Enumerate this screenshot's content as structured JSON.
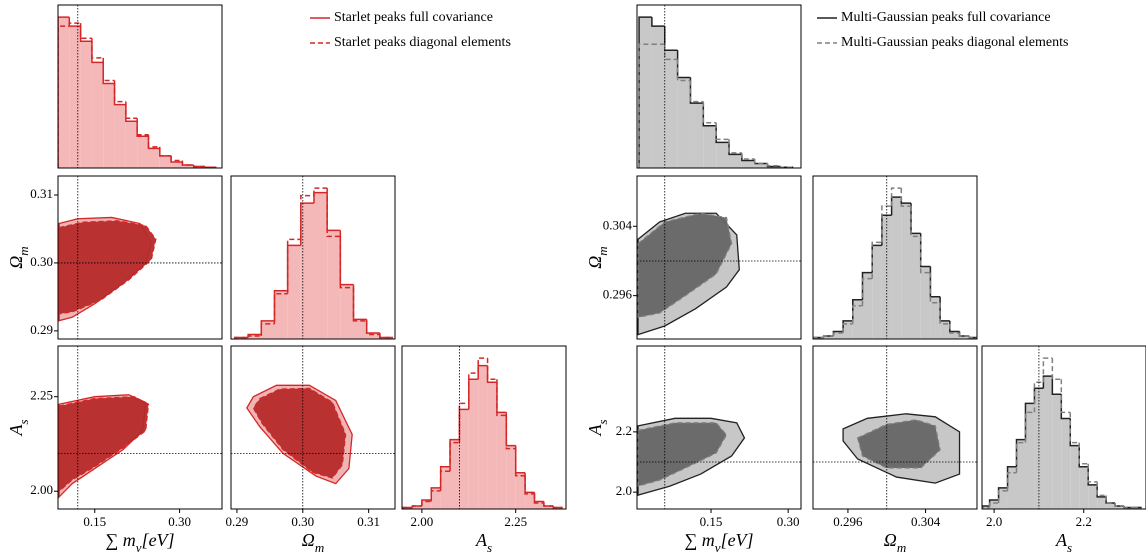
{
  "chart_data": [
    {
      "type": "corner",
      "series": [
        {
          "name": "Starlet peaks full covariance",
          "color": "#d62728",
          "dash": false,
          "fill": "#eeb0b0"
        },
        {
          "name": "Starlet peaks diagonal elements",
          "color": "#d62728",
          "dash": true,
          "fill": "#b52a2a"
        }
      ],
      "hist_fill": "#f5b8b8",
      "hist_ylim": [
        0,
        1.08
      ],
      "parameters": [
        {
          "label": [
            {
              "text": "∑ m"
            },
            {
              "text": "ν",
              "sub": true
            },
            {
              "text": "[eV]"
            }
          ],
          "truth": 0.12,
          "xlim": [
            0.085,
            0.375
          ],
          "xticks": [
            0.15,
            {
              "value": 0.3,
              "label": "0.30"
            }
          ]
        },
        {
          "label": [
            {
              "text": "Ω"
            },
            {
              "text": "m",
              "sub": true
            }
          ],
          "truth": 0.3,
          "xlim": [
            0.2891,
            0.314
          ],
          "xticks": [
            0.29,
            {
              "value": 0.3,
              "label": "0.30"
            },
            0.31
          ],
          "ylim": [
            0.2888,
            0.3128
          ],
          "yticks": [
            0.29,
            {
              "value": 0.3,
              "label": "0.30"
            },
            0.31
          ]
        },
        {
          "label": [
            {
              "text": "A"
            },
            {
              "text": "s",
              "sub": true
            }
          ],
          "truth": 2.1,
          "xlim": [
            1.947,
            2.384
          ],
          "xticks": [
            {
              "value": 2.0,
              "label": "2.00"
            },
            2.25
          ],
          "ylim": [
            1.953,
            2.384
          ],
          "yticks": [
            {
              "value": 2.0,
              "label": "2.00"
            },
            2.25
          ]
        }
      ],
      "histograms": [
        {
          "param": 0,
          "bins": [
            0.085,
            0.105,
            0.125,
            0.145,
            0.165,
            0.185,
            0.205,
            0.225,
            0.245,
            0.265,
            0.285,
            0.305,
            0.325,
            0.345,
            0.365
          ],
          "series": [
            {
              "values": [
                1.0,
                0.94,
                0.84,
                0.7,
                0.56,
                0.42,
                0.31,
                0.21,
                0.13,
                0.08,
                0.04,
                0.02,
                0.01,
                0.005
              ]
            },
            {
              "values": [
                0.94,
                0.96,
                0.86,
                0.73,
                0.58,
                0.44,
                0.33,
                0.22,
                0.14,
                0.08,
                0.05,
                0.02,
                0.01,
                0.005
              ]
            }
          ]
        },
        {
          "param": 1,
          "bins": [
            0.2897,
            0.2917,
            0.2937,
            0.2957,
            0.2977,
            0.2997,
            0.3017,
            0.3037,
            0.3057,
            0.3077,
            0.3097,
            0.3117,
            0.3137
          ],
          "series": [
            {
              "values": [
                0.01,
                0.03,
                0.12,
                0.32,
                0.62,
                0.9,
                0.97,
                0.72,
                0.36,
                0.13,
                0.04,
                0.01
              ]
            },
            {
              "values": [
                0.01,
                0.02,
                0.1,
                0.3,
                0.66,
                0.95,
                1.0,
                0.68,
                0.34,
                0.12,
                0.03,
                0.01
              ]
            }
          ]
        },
        {
          "param": 2,
          "bins": [
            1.95,
            1.975,
            2.0,
            2.025,
            2.05,
            2.075,
            2.1,
            2.125,
            2.15,
            2.175,
            2.2,
            2.225,
            2.25,
            2.275,
            2.3,
            2.325,
            2.35,
            2.375
          ],
          "series": [
            {
              "values": [
                0.01,
                0.02,
                0.06,
                0.14,
                0.28,
                0.46,
                0.66,
                0.86,
                0.95,
                0.84,
                0.64,
                0.42,
                0.24,
                0.11,
                0.05,
                0.02,
                0.01
              ]
            },
            {
              "values": [
                0.01,
                0.02,
                0.05,
                0.12,
                0.25,
                0.44,
                0.7,
                0.9,
                1.0,
                0.86,
                0.62,
                0.4,
                0.22,
                0.1,
                0.04,
                0.02,
                0.01
              ]
            }
          ]
        }
      ],
      "contours": [
        {
          "x_param": 0,
          "y_param": 1,
          "series": [
            {
              "x": [
                0.087,
                0.12,
                0.18,
                0.23,
                0.25,
                0.24,
                0.2,
                0.15,
                0.11,
                0.087
              ],
              "y": [
                0.3058,
                0.3065,
                0.3067,
                0.3058,
                0.303,
                0.3,
                0.297,
                0.294,
                0.292,
                0.2915
              ]
            },
            {
              "x": [
                0.087,
                0.13,
                0.19,
                0.24,
                0.258,
                0.25,
                0.21,
                0.16,
                0.11,
                0.087
              ],
              "y": [
                0.3052,
                0.306,
                0.3062,
                0.3055,
                0.3035,
                0.3005,
                0.2975,
                0.2945,
                0.2928,
                0.2925
              ]
            }
          ]
        },
        {
          "x_param": 0,
          "y_param": 2,
          "series": [
            {
              "x": [
                0.087,
                0.15,
                0.21,
                0.24,
                0.235,
                0.2,
                0.15,
                0.11,
                0.087
              ],
              "y": [
                2.23,
                2.25,
                2.255,
                2.235,
                2.16,
                2.11,
                2.06,
                2.02,
                1.985
              ]
            },
            {
              "x": [
                0.087,
                0.15,
                0.22,
                0.245,
                0.24,
                0.2,
                0.15,
                0.11,
                0.087
              ],
              "y": [
                2.225,
                2.245,
                2.25,
                2.23,
                2.16,
                2.115,
                2.065,
                2.03,
                2.0
              ]
            }
          ]
        },
        {
          "x_param": 1,
          "y_param": 2,
          "series": [
            {
              "x": [
                0.2925,
                0.296,
                0.301,
                0.305,
                0.3075,
                0.307,
                0.305,
                0.302,
                0.297,
                0.2935,
                0.2915
              ],
              "y": [
                2.25,
                2.28,
                2.28,
                2.24,
                2.15,
                2.06,
                2.02,
                2.04,
                2.1,
                2.17,
                2.22
              ]
            },
            {
              "x": [
                0.2935,
                0.2965,
                0.301,
                0.3045,
                0.3065,
                0.306,
                0.3045,
                0.3015,
                0.297,
                0.2938,
                0.2925
              ],
              "y": [
                2.245,
                2.27,
                2.272,
                2.235,
                2.15,
                2.07,
                2.035,
                2.05,
                2.11,
                2.18,
                2.22
              ]
            }
          ]
        }
      ]
    },
    {
      "type": "corner",
      "series": [
        {
          "name": "Multi-Gaussian peaks full covariance",
          "color": "#222222",
          "dash": false,
          "fill": "#c4c4c4"
        },
        {
          "name": "Multi-Gaussian peaks diagonal elements",
          "color": "#808080",
          "dash": true,
          "fill": "#666666"
        }
      ],
      "hist_fill": "#c8c8c8",
      "hist_ylim": [
        0,
        1.08
      ],
      "parameters": [
        {
          "label": [
            {
              "text": "∑ m"
            },
            {
              "text": "ν",
              "sub": true
            },
            {
              "text": "[eV]"
            }
          ],
          "truth": 0.06,
          "xlim": [
            0.006,
            0.325
          ],
          "xticks": [
            0.15,
            {
              "value": 0.3,
              "label": "0.30"
            }
          ]
        },
        {
          "label": [
            {
              "text": "Ω"
            },
            {
              "text": "m",
              "sub": true
            }
          ],
          "truth": 0.3,
          "xlim": [
            0.2924,
            0.3093
          ],
          "xticks": [
            0.296,
            0.304
          ],
          "ylim": [
            0.291,
            0.3098
          ],
          "yticks": [
            0.296,
            0.304
          ]
        },
        {
          "label": [
            {
              "text": "A"
            },
            {
              "text": "s",
              "sub": true
            }
          ],
          "truth": 2.1,
          "xlim": [
            1.973,
            2.339
          ],
          "xticks": [
            {
              "value": 2.0,
              "label": "2.0"
            },
            2.2
          ],
          "ylim": [
            1.944,
            2.485
          ],
          "yticks": [
            {
              "value": 2.0,
              "label": "2.0"
            },
            2.2
          ]
        }
      ],
      "histograms": [
        {
          "param": 0,
          "bins": [
            0.01,
            0.035,
            0.06,
            0.085,
            0.11,
            0.135,
            0.16,
            0.185,
            0.21,
            0.235,
            0.26,
            0.285,
            0.31
          ],
          "series": [
            {
              "values": [
                1.0,
                0.94,
                0.78,
                0.6,
                0.43,
                0.28,
                0.17,
                0.09,
                0.05,
                0.03,
                0.01,
                0.005
              ]
            },
            {
              "values": [
                0.82,
                0.82,
                0.72,
                0.58,
                0.44,
                0.3,
                0.19,
                0.1,
                0.06,
                0.03,
                0.015,
                0.005
              ]
            }
          ]
        },
        {
          "param": 1,
          "bins": [
            0.2925,
            0.2935,
            0.2945,
            0.2955,
            0.2965,
            0.2975,
            0.2985,
            0.2995,
            0.3005,
            0.3015,
            0.3025,
            0.3035,
            0.3045,
            0.3055,
            0.3065,
            0.3075,
            0.3085,
            0.3095
          ],
          "series": [
            {
              "values": [
                0.01,
                0.02,
                0.05,
                0.12,
                0.26,
                0.44,
                0.62,
                0.82,
                0.94,
                0.9,
                0.7,
                0.48,
                0.28,
                0.12,
                0.05,
                0.02,
                0.01
              ]
            },
            {
              "values": [
                0.01,
                0.02,
                0.04,
                0.1,
                0.22,
                0.4,
                0.64,
                0.88,
                1.0,
                0.88,
                0.68,
                0.44,
                0.24,
                0.1,
                0.04,
                0.02,
                0.01
              ]
            }
          ]
        },
        {
          "param": 2,
          "bins": [
            1.97,
            1.99,
            2.01,
            2.03,
            2.05,
            2.07,
            2.09,
            2.11,
            2.13,
            2.15,
            2.17,
            2.19,
            2.21,
            2.23,
            2.25,
            2.27,
            2.29,
            2.31,
            2.33
          ],
          "series": [
            {
              "values": [
                0.02,
                0.06,
                0.14,
                0.28,
                0.46,
                0.7,
                0.8,
                0.88,
                0.76,
                0.6,
                0.42,
                0.28,
                0.16,
                0.08,
                0.04,
                0.02,
                0.01,
                0.01
              ]
            },
            {
              "values": [
                0.01,
                0.04,
                0.12,
                0.24,
                0.44,
                0.64,
                0.84,
                1.0,
                0.86,
                0.64,
                0.44,
                0.3,
                0.18,
                0.09,
                0.04,
                0.02,
                0.01,
                0.01
              ]
            }
          ]
        }
      ],
      "contours": [
        {
          "x_param": 0,
          "y_param": 1,
          "series": [
            {
              "x": [
                0.008,
                0.05,
                0.1,
                0.16,
                0.2,
                0.205,
                0.18,
                0.12,
                0.06,
                0.008
              ],
              "y": [
                0.3025,
                0.3045,
                0.3055,
                0.3055,
                0.303,
                0.299,
                0.297,
                0.2945,
                0.2925,
                0.2915
              ]
            },
            {
              "x": [
                0.008,
                0.06,
                0.13,
                0.18,
                0.19,
                0.16,
                0.1,
                0.05,
                0.008
              ],
              "y": [
                0.302,
                0.3045,
                0.3055,
                0.305,
                0.302,
                0.2985,
                0.296,
                0.294,
                0.2935
              ]
            }
          ]
        },
        {
          "x_param": 0,
          "y_param": 2,
          "series": [
            {
              "x": [
                0.008,
                0.08,
                0.15,
                0.2,
                0.215,
                0.19,
                0.13,
                0.07,
                0.008
              ],
              "y": [
                2.22,
                2.245,
                2.245,
                2.23,
                2.18,
                2.12,
                2.06,
                2.02,
                1.99
              ]
            },
            {
              "x": [
                0.008,
                0.08,
                0.16,
                0.18,
                0.16,
                0.1,
                0.05,
                0.008
              ],
              "y": [
                2.205,
                2.23,
                2.23,
                2.19,
                2.13,
                2.08,
                2.04,
                2.02
              ]
            }
          ]
        },
        {
          "x_param": 1,
          "y_param": 2,
          "series": [
            {
              "x": [
                0.2955,
                0.298,
                0.302,
                0.305,
                0.3075,
                0.3075,
                0.305,
                0.301,
                0.297,
                0.2955
              ],
              "y": [
                2.21,
                2.245,
                2.26,
                2.25,
                2.2,
                2.06,
                2.03,
                2.05,
                2.11,
                2.17
              ]
            },
            {
              "x": [
                0.297,
                0.3,
                0.303,
                0.305,
                0.3055,
                0.3035,
                0.3,
                0.2975
              ],
              "y": [
                2.18,
                2.225,
                2.24,
                2.22,
                2.14,
                2.08,
                2.08,
                2.12
              ]
            }
          ]
        }
      ]
    }
  ]
}
